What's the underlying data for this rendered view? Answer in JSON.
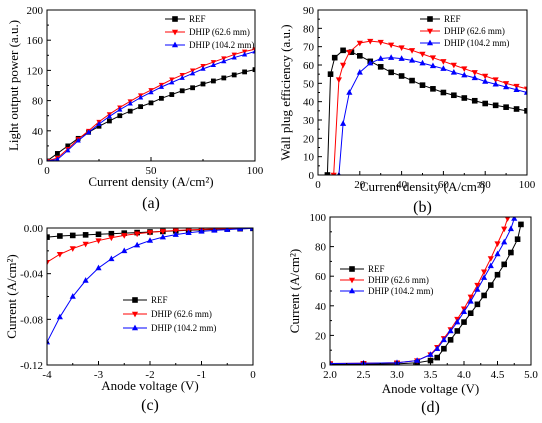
{
  "chart_data": [
    {
      "type": "line",
      "panel_label": "(a)",
      "xlabel": "Current density (A/cm²)",
      "ylabel": "Light output power (a.u.)",
      "xlim": [
        0,
        100
      ],
      "ylim": [
        0,
        200
      ],
      "xticks": [
        0,
        50,
        100
      ],
      "yticks": [
        0,
        40,
        80,
        120,
        160,
        200
      ],
      "xtick_labels": [
        "0",
        "50",
        "100"
      ],
      "ytick_labels": [
        "0",
        "40",
        "80",
        "120",
        "160",
        "200"
      ],
      "legend_position": "top-right",
      "series": [
        {
          "name": "REF",
          "color": "#000000",
          "marker": "square",
          "x": [
            0,
            5,
            10,
            15,
            20,
            25,
            30,
            35,
            40,
            45,
            50,
            55,
            60,
            65,
            70,
            75,
            80,
            85,
            90,
            95,
            100
          ],
          "y": [
            0,
            10,
            20,
            30,
            38,
            46,
            53,
            60,
            66,
            72,
            77,
            83,
            88,
            93,
            97,
            102,
            106,
            110,
            114,
            118,
            121
          ]
        },
        {
          "name": "DHIP (62.6 mm)",
          "color": "#ff0000",
          "marker": "triangle-down",
          "x": [
            0,
            5,
            10,
            15,
            20,
            25,
            30,
            35,
            40,
            45,
            50,
            55,
            60,
            65,
            70,
            75,
            80,
            85,
            90,
            95,
            100
          ],
          "y": [
            0,
            4,
            16,
            29,
            40,
            52,
            62,
            71,
            79,
            87,
            94,
            101,
            108,
            114,
            120,
            126,
            131,
            136,
            141,
            145,
            148
          ]
        },
        {
          "name": "DHIP (104.2 mm)",
          "color": "#0000ff",
          "marker": "triangle-up",
          "x": [
            0,
            5,
            10,
            15,
            20,
            25,
            30,
            35,
            40,
            45,
            50,
            55,
            60,
            65,
            70,
            75,
            80,
            85,
            90,
            95,
            100
          ],
          "y": [
            0,
            2,
            14,
            27,
            38,
            49,
            59,
            68,
            76,
            84,
            91,
            98,
            104,
            110,
            116,
            122,
            127,
            132,
            137,
            141,
            145
          ]
        }
      ]
    },
    {
      "type": "line",
      "panel_label": "(b)",
      "xlabel": "Current density (A/cm²)",
      "ylabel": "Wall plug efficiency (a.u.)",
      "xlim": [
        0,
        100
      ],
      "ylim": [
        0,
        90
      ],
      "xticks": [
        0,
        20,
        40,
        60,
        80,
        100
      ],
      "yticks": [
        0,
        10,
        20,
        30,
        40,
        50,
        60,
        70,
        80,
        90
      ],
      "xtick_labels": [
        "0",
        "20",
        "40",
        "60",
        "80",
        "100"
      ],
      "ytick_labels": [
        "0",
        "10",
        "20",
        "30",
        "40",
        "50",
        "60",
        "70",
        "80",
        "90"
      ],
      "legend_position": "top-right",
      "series": [
        {
          "name": "REF",
          "color": "#000000",
          "marker": "square",
          "x": [
            4.5,
            6,
            8,
            12,
            16,
            20,
            25,
            30,
            35,
            40,
            45,
            50,
            55,
            60,
            65,
            70,
            75,
            80,
            85,
            90,
            95,
            100
          ],
          "y": [
            0,
            55,
            64,
            68,
            67,
            65,
            62,
            59,
            56,
            54,
            51.5,
            49,
            47,
            45,
            43.5,
            42,
            40.5,
            39,
            38,
            37,
            36,
            35
          ]
        },
        {
          "name": "DHIP (62.6 mm)",
          "color": "#ff0000",
          "marker": "triangle-down",
          "x": [
            7.5,
            10,
            12,
            15,
            20,
            25,
            30,
            35,
            40,
            45,
            50,
            55,
            60,
            65,
            70,
            75,
            80,
            85,
            90,
            95,
            100
          ],
          "y": [
            0,
            52,
            60,
            67,
            72,
            73,
            72.5,
            71,
            69.5,
            68,
            66,
            64,
            62,
            60,
            58,
            56,
            54,
            52,
            50,
            48.5,
            47
          ]
        },
        {
          "name": "DHIP (104.2 mm)",
          "color": "#0000ff",
          "marker": "triangle-up",
          "x": [
            10,
            12,
            15,
            20,
            25,
            30,
            35,
            40,
            45,
            50,
            55,
            60,
            65,
            70,
            75,
            80,
            85,
            90,
            95,
            100
          ],
          "y": [
            0,
            28,
            45,
            56,
            61,
            63.5,
            64,
            63.5,
            62.5,
            61,
            59.5,
            58,
            56,
            54.5,
            53,
            51,
            49.5,
            48,
            46.5,
            45
          ]
        }
      ]
    },
    {
      "type": "line",
      "panel_label": "(c)",
      "xlabel": "Anode voltage (V)",
      "ylabel": "Current (A/cm²)",
      "xlim": [
        -4,
        0
      ],
      "ylim": [
        -0.12,
        0.0
      ],
      "xticks": [
        -4,
        -3,
        -2,
        -1,
        0
      ],
      "yticks": [
        -0.12,
        -0.08,
        -0.04,
        0.0
      ],
      "xtick_labels": [
        "-4",
        "-3",
        "-2",
        "-1",
        "0"
      ],
      "ytick_labels": [
        "-0.12",
        "-0.08",
        "-0.04",
        "0.00"
      ],
      "legend_position": "bottom-right",
      "series": [
        {
          "name": "REF",
          "color": "#000000",
          "marker": "square",
          "x": [
            -4,
            -3.75,
            -3.5,
            -3.25,
            -3,
            -2.75,
            -2.5,
            -2.25,
            -2,
            -1.75,
            -1.5,
            -1.25,
            -1,
            -0.75,
            -0.5,
            -0.25,
            0
          ],
          "y": [
            -0.008,
            -0.007,
            -0.0065,
            -0.006,
            -0.0055,
            -0.005,
            -0.0045,
            -0.004,
            -0.0035,
            -0.003,
            -0.0025,
            -0.002,
            -0.0016,
            -0.0012,
            -0.0009,
            -0.0006,
            -0.0003
          ]
        },
        {
          "name": "DHIP (62.6 mm)",
          "color": "#ff0000",
          "marker": "triangle-down",
          "x": [
            -4,
            -3.75,
            -3.5,
            -3.25,
            -3,
            -2.75,
            -2.5,
            -2.25,
            -2,
            -1.75,
            -1.5,
            -1.25,
            -1,
            -0.75,
            -0.5,
            -0.25,
            0
          ],
          "y": [
            -0.03,
            -0.023,
            -0.018,
            -0.014,
            -0.011,
            -0.0085,
            -0.0065,
            -0.005,
            -0.0038,
            -0.0029,
            -0.0022,
            -0.0016,
            -0.0012,
            -0.0008,
            -0.0005,
            -0.0003,
            -0.0001
          ]
        },
        {
          "name": "DHIP (104.2 mm)",
          "color": "#0000ff",
          "marker": "triangle-up",
          "x": [
            -4,
            -3.75,
            -3.5,
            -3.25,
            -3,
            -2.75,
            -2.5,
            -2.25,
            -2,
            -1.75,
            -1.5,
            -1.25,
            -1,
            -0.75,
            -0.5,
            -0.25,
            0
          ],
          "y": [
            -0.1,
            -0.078,
            -0.06,
            -0.046,
            -0.035,
            -0.027,
            -0.02,
            -0.015,
            -0.011,
            -0.008,
            -0.0058,
            -0.0042,
            -0.003,
            -0.0021,
            -0.0014,
            -0.0008,
            -0.0003
          ]
        }
      ]
    },
    {
      "type": "line",
      "panel_label": "(d)",
      "xlabel": "Anode voltage (V)",
      "ylabel": "Current (A/cm²)",
      "xlim": [
        2.0,
        5.0
      ],
      "ylim": [
        0,
        100
      ],
      "xticks": [
        2.0,
        2.5,
        3.0,
        3.5,
        4.0,
        4.5,
        5.0
      ],
      "yticks": [
        0,
        20,
        40,
        60,
        80,
        100
      ],
      "xtick_labels": [
        "2.0",
        "2.5",
        "3.0",
        "3.5",
        "4.0",
        "4.5",
        "5.0"
      ],
      "ytick_labels": [
        "0",
        "20",
        "40",
        "60",
        "80",
        "100"
      ],
      "legend_position": "top-left",
      "series": [
        {
          "name": "REF",
          "color": "#000000",
          "marker": "square",
          "x": [
            2.0,
            2.5,
            3.0,
            3.3,
            3.5,
            3.6,
            3.7,
            3.8,
            3.9,
            4.0,
            4.1,
            4.2,
            4.3,
            4.4,
            4.5,
            4.6,
            4.7,
            4.8,
            4.85
          ],
          "y": [
            0.5,
            0.6,
            0.8,
            1.5,
            3,
            5,
            11,
            17,
            23,
            29,
            35,
            41,
            47,
            54,
            61,
            68,
            76,
            85,
            95
          ]
        },
        {
          "name": "DHIP (62.6 mm)",
          "color": "#ff0000",
          "marker": "triangle-down",
          "x": [
            2.0,
            2.5,
            3.0,
            3.3,
            3.5,
            3.6,
            3.7,
            3.8,
            3.9,
            4.0,
            4.1,
            4.2,
            4.3,
            4.4,
            4.5,
            4.6,
            4.65
          ],
          "y": [
            1,
            1.2,
            1.5,
            3,
            7,
            12,
            18,
            24,
            31,
            38,
            46,
            54,
            63,
            72,
            82,
            92,
            99
          ]
        },
        {
          "name": "DHIP (104.2 mm)",
          "color": "#0000ff",
          "marker": "triangle-up",
          "x": [
            2.0,
            2.5,
            3.0,
            3.3,
            3.5,
            3.6,
            3.7,
            3.8,
            3.9,
            4.0,
            4.1,
            4.2,
            4.3,
            4.4,
            4.5,
            4.6,
            4.7,
            4.75
          ],
          "y": [
            1,
            1.2,
            1.5,
            3,
            7,
            11,
            17,
            23,
            29,
            36,
            43,
            51,
            59,
            67,
            75,
            83,
            92,
            99
          ]
        }
      ]
    }
  ]
}
